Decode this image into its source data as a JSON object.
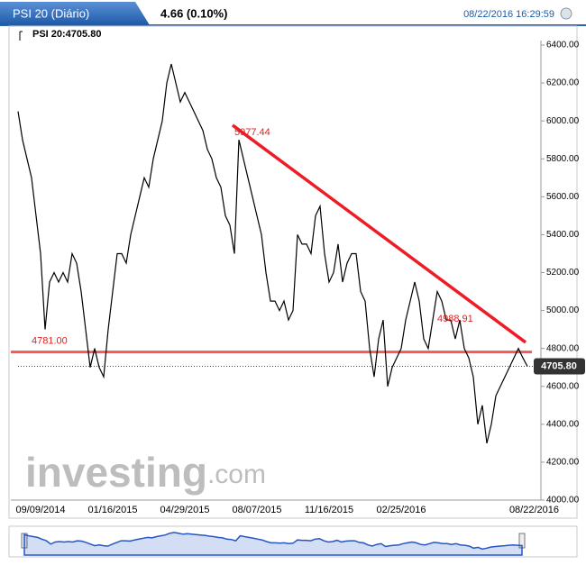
{
  "header": {
    "title": "PSI 20 (Diário)",
    "change": "4.66 (0.10%)",
    "timestamp": "08/22/2016 16:29:59",
    "legend": "PSI 20:4705.80"
  },
  "watermark": {
    "brand": "investing",
    "suffix": ".com"
  },
  "chart_data": {
    "type": "line",
    "categories": [
      null,
      null,
      null,
      null,
      null,
      "09/09/2014",
      null,
      null,
      null,
      null,
      null,
      null,
      null,
      null,
      null,
      null,
      null,
      null,
      null,
      null,
      null,
      "01/16/2015",
      null,
      null,
      null,
      null,
      null,
      null,
      null,
      null,
      null,
      null,
      null,
      null,
      null,
      null,
      null,
      "04/29/2015",
      null,
      null,
      null,
      null,
      null,
      null,
      null,
      null,
      null,
      null,
      null,
      null,
      null,
      null,
      null,
      "08/07/2015",
      null,
      null,
      null,
      null,
      null,
      null,
      null,
      null,
      null,
      null,
      null,
      null,
      null,
      null,
      null,
      "11/16/2015",
      null,
      null,
      null,
      null,
      null,
      null,
      null,
      null,
      null,
      null,
      null,
      null,
      null,
      null,
      null,
      "02/25/2016",
      null,
      null,
      null,
      null,
      null,
      null,
      null,
      null,
      null,
      null,
      null,
      null,
      null,
      null,
      null,
      null,
      null,
      null,
      null,
      null,
      null,
      null,
      null,
      null,
      null,
      null,
      null,
      "08/22/2016"
    ],
    "values": [
      6050,
      5900,
      5800,
      5700,
      5500,
      5300,
      4900,
      5150,
      5200,
      5150,
      5200,
      5150,
      5300,
      5250,
      5100,
      4900,
      4700,
      4800,
      4700,
      4650,
      4900,
      5100,
      5300,
      5300,
      5250,
      5400,
      5500,
      5600,
      5700,
      5650,
      5800,
      5900,
      6000,
      6200,
      6300,
      6200,
      6100,
      6150,
      6100,
      6050,
      6000,
      5950,
      5850,
      5800,
      5700,
      5650,
      5500,
      5450,
      5300,
      5900,
      5800,
      5700,
      5600,
      5500,
      5400,
      5200,
      5050,
      5050,
      5000,
      5050,
      4950,
      5000,
      5400,
      5350,
      5350,
      5300,
      5500,
      5550,
      5300,
      5150,
      5200,
      5350,
      5150,
      5250,
      5300,
      5300,
      5100,
      5050,
      4800,
      4650,
      4850,
      4950,
      4600,
      4700,
      4750,
      4800,
      4950,
      5050,
      5150,
      5050,
      4850,
      4800,
      4950,
      5100,
      5050,
      4950,
      4950,
      4850,
      4950,
      4800,
      4750,
      4650,
      4400,
      4500,
      4300,
      4400,
      4550,
      4600,
      4650,
      4700,
      4750,
      4800,
      4750,
      4705.8
    ],
    "color": "#000000",
    "ylim": [
      4000,
      6400
    ],
    "yticks": [
      {
        "value": 4000,
        "label": "4000.00"
      },
      {
        "value": 4200,
        "label": "4200.00"
      },
      {
        "value": 4400,
        "label": "4400.00"
      },
      {
        "value": 4600,
        "label": "4600.00"
      },
      {
        "value": 4800,
        "label": "4800.00"
      },
      {
        "value": 5000,
        "label": "5000.00"
      },
      {
        "value": 5200,
        "label": "5200.00"
      },
      {
        "value": 5400,
        "label": "5400.00"
      },
      {
        "value": 5600,
        "label": "5600.00"
      },
      {
        "value": 5800,
        "label": "5800.00"
      },
      {
        "value": 6000,
        "label": "6000.00"
      },
      {
        "value": 6200,
        "label": "6200.00"
      },
      {
        "value": 6400,
        "label": "6400.00"
      }
    ],
    "grid": false,
    "annotations": [
      {
        "value": 5977.44,
        "label": "5977.44"
      },
      {
        "value": 4988.91,
        "label": "4988.91"
      }
    ],
    "trendline": {
      "color": "#ee1c25",
      "values": [
        5977.44,
        4832
      ]
    },
    "hline": {
      "value": 4781,
      "label": "4781.00",
      "color": "#f25a5a"
    },
    "last": {
      "value": 4705.8,
      "label": "4705.80"
    },
    "navigator_color": "#2457c5"
  }
}
